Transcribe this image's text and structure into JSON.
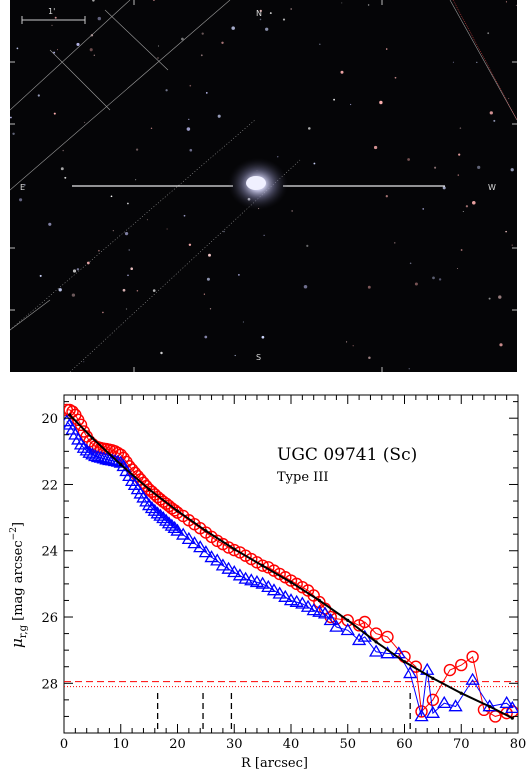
{
  "image": {
    "scale_label": "1'",
    "compass": {
      "north": "N",
      "south": "S",
      "east": "E",
      "west": "W"
    }
  },
  "chart_data": {
    "type": "scatter",
    "title": "UGC 09741 (Sc)",
    "subtitle": "Type III",
    "xlabel": "R [arcsec]",
    "ylabel": "μr,g [mag arcsec−2]",
    "ylabel_main": "μ",
    "ylabel_sub": "r,g",
    "ylabel_unit": " [mag arcsec",
    "ylabel_exp": "−2",
    "ylabel_close": "]",
    "xlim": [
      0,
      80
    ],
    "ylim": [
      29.5,
      19.3
    ],
    "y_inverted": true,
    "xticks": [
      0,
      10,
      20,
      30,
      40,
      50,
      60,
      70,
      80
    ],
    "yticks": [
      20,
      22,
      24,
      26,
      28
    ],
    "colors": {
      "r": "#ff0000",
      "g": "#0000ff",
      "fit": "#000000"
    },
    "series": [
      {
        "band": "r",
        "marker": "circle",
        "x": [
          0.5,
          1,
          1.5,
          2,
          2.5,
          3,
          3.5,
          4,
          4.5,
          5,
          5.5,
          6,
          6.5,
          7,
          7.5,
          8,
          8.5,
          9,
          9.5,
          10,
          10.5,
          11,
          11.5,
          12,
          12.5,
          13,
          13.5,
          14,
          14.5,
          15,
          15.5,
          16,
          16.5,
          17,
          17.5,
          18,
          18.5,
          19,
          19.5,
          20,
          21,
          22,
          23,
          24,
          25,
          26,
          27,
          28,
          29,
          30,
          31,
          32,
          33,
          34,
          35,
          36,
          37,
          38,
          39,
          40,
          41,
          42,
          43,
          44,
          45,
          46,
          47,
          48,
          50,
          52,
          53,
          55,
          57,
          60,
          62,
          63,
          65,
          68,
          70,
          72,
          74,
          76,
          78,
          79
        ],
        "y": [
          19.75,
          19.75,
          19.8,
          19.9,
          20.05,
          20.2,
          20.4,
          20.55,
          20.7,
          20.78,
          20.85,
          20.88,
          20.9,
          20.92,
          20.93,
          20.95,
          20.97,
          21.0,
          21.05,
          21.1,
          21.2,
          21.32,
          21.45,
          21.55,
          21.65,
          21.75,
          21.85,
          21.95,
          22.05,
          22.15,
          22.22,
          22.3,
          22.38,
          22.45,
          22.52,
          22.58,
          22.65,
          22.72,
          22.78,
          22.85,
          22.95,
          23.08,
          23.2,
          23.32,
          23.45,
          23.58,
          23.7,
          23.8,
          23.9,
          23.98,
          24.05,
          24.15,
          24.25,
          24.35,
          24.45,
          24.5,
          24.6,
          24.7,
          24.8,
          24.9,
          25.0,
          25.1,
          25.2,
          25.35,
          25.55,
          25.75,
          26.0,
          26.05,
          26.1,
          26.25,
          26.15,
          26.5,
          26.6,
          27.2,
          27.5,
          28.85,
          28.5,
          27.6,
          27.45,
          27.2,
          28.8,
          29.0,
          28.9,
          28.85
        ]
      },
      {
        "band": "g",
        "marker": "triangle",
        "x": [
          0.5,
          1,
          1.5,
          2,
          2.5,
          3,
          3.5,
          4,
          4.5,
          5,
          5.5,
          6,
          6.5,
          7,
          7.5,
          8,
          8.5,
          9,
          9.5,
          10,
          10.5,
          11,
          11.5,
          12,
          12.5,
          13,
          13.5,
          14,
          14.5,
          15,
          15.5,
          16,
          16.5,
          17,
          17.5,
          18,
          18.5,
          19,
          19.5,
          20,
          21,
          22,
          23,
          24,
          25,
          26,
          27,
          28,
          29,
          30,
          31,
          32,
          33,
          34,
          35,
          36,
          37,
          38,
          39,
          40,
          41,
          42,
          43,
          44,
          45,
          46,
          47,
          48,
          50,
          52,
          53,
          55,
          57,
          59,
          61,
          63,
          64,
          65,
          67,
          69,
          72,
          75,
          78,
          79
        ],
        "y": [
          20.1,
          20.2,
          20.35,
          20.5,
          20.65,
          20.8,
          20.9,
          20.98,
          21.05,
          21.1,
          21.15,
          21.18,
          21.2,
          21.22,
          21.25,
          21.27,
          21.28,
          21.3,
          21.32,
          21.35,
          21.45,
          21.6,
          21.75,
          21.9,
          22.02,
          22.15,
          22.28,
          22.4,
          22.52,
          22.63,
          22.72,
          22.8,
          22.88,
          22.95,
          23.02,
          23.1,
          23.18,
          23.25,
          23.32,
          23.4,
          23.52,
          23.65,
          23.78,
          23.9,
          24.05,
          24.2,
          24.3,
          24.45,
          24.55,
          24.65,
          24.75,
          24.85,
          24.9,
          24.95,
          25.0,
          25.1,
          25.2,
          25.3,
          25.4,
          25.5,
          25.55,
          25.6,
          25.7,
          25.8,
          25.85,
          25.9,
          26.1,
          26.3,
          26.4,
          26.7,
          26.6,
          27.05,
          27.1,
          27.1,
          27.7,
          29.0,
          27.6,
          28.9,
          28.6,
          28.7,
          27.9,
          28.7,
          28.6,
          28.75
        ]
      },
      {
        "band": "fit",
        "marker": "line",
        "x": [
          1,
          5,
          10,
          15,
          20,
          25,
          30,
          35,
          40,
          45,
          50,
          55,
          60,
          65,
          70,
          75,
          79
        ],
        "y": [
          19.9,
          20.6,
          21.4,
          22.15,
          22.8,
          23.4,
          23.95,
          24.45,
          24.95,
          25.5,
          26.1,
          26.75,
          27.35,
          27.85,
          28.3,
          28.7,
          29.05
        ]
      }
    ],
    "limits": [
      {
        "style": "dashed",
        "color": "#ff0000",
        "y": 27.95
      },
      {
        "style": "dotted",
        "color": "#ff0000",
        "y": 28.1
      }
    ],
    "markers_x": [
      16.5,
      24.5,
      29.5,
      61
    ]
  }
}
